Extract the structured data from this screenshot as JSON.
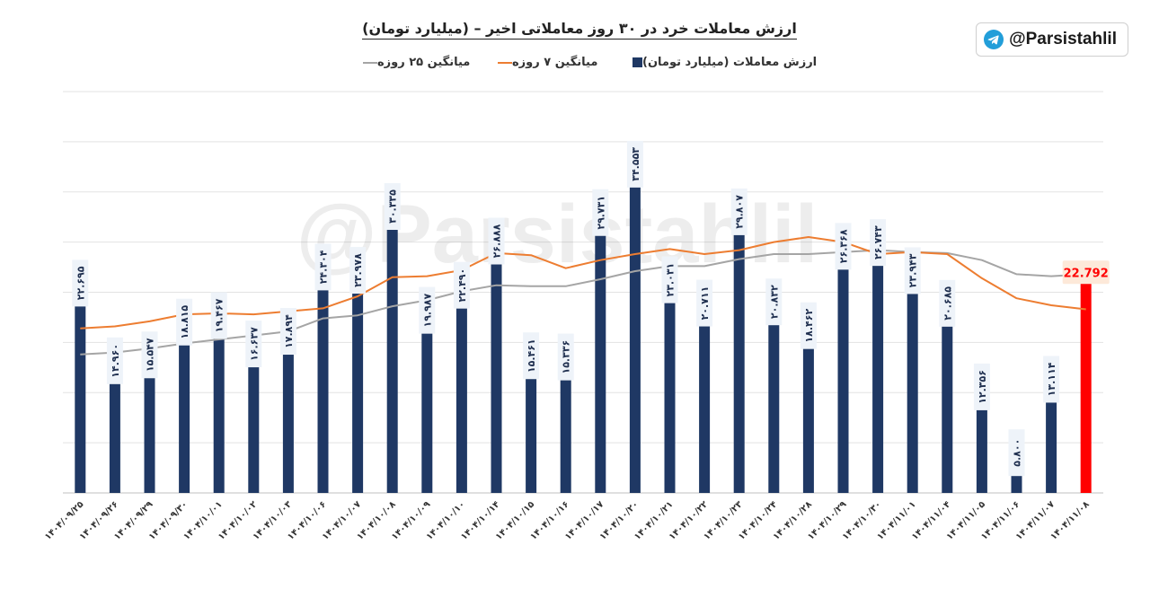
{
  "brand": {
    "handle": "@Parsistahlil",
    "icon": "telegram-icon"
  },
  "watermark": "@Parsistahlil",
  "chart_data": {
    "type": "bar",
    "title": "ارزش معاملات خرد در ۳۰ روز معاملاتی اخیر – (میلیارد تومان)",
    "xlabel": "",
    "ylabel": "",
    "ylim": [
      0,
      40
    ],
    "grid": true,
    "legend_position": "top",
    "categories": [
      "۱۴۰۴/۰۹/۲۵",
      "۱۴۰۴/۰۹/۲۶",
      "۱۴۰۴/۰۹/۲۹",
      "۱۴۰۴/۰۹/۳۰",
      "۱۴۰۴/۱۰/۰۱",
      "۱۴۰۴/۱۰/۰۲",
      "۱۴۰۴/۱۰/۰۳",
      "۱۴۰۴/۱۰/۰۶",
      "۱۴۰۴/۱۰/۰۷",
      "۱۴۰۴/۱۰/۰۸",
      "۱۴۰۴/۱۰/۰۹",
      "۱۴۰۴/۱۰/۱۰",
      "۱۴۰۴/۱۰/۱۴",
      "۱۴۰۴/۱۰/۱۵",
      "۱۴۰۴/۱۰/۱۶",
      "۱۴۰۴/۱۰/۱۷",
      "۱۴۰۴/۱۰/۲۰",
      "۱۴۰۴/۱۰/۲۱",
      "۱۴۰۴/۱۰/۲۲",
      "۱۴۰۴/۱۰/۲۳",
      "۱۴۰۴/۱۰/۲۴",
      "۱۴۰۴/۱۰/۲۸",
      "۱۴۰۴/۱۰/۲۹",
      "۱۴۰۴/۱۰/۳۰",
      "۱۴۰۴/۱۱/۰۱",
      "۱۴۰۴/۱۱/۰۴",
      "۱۴۰۴/۱۱/۰۵",
      "۱۴۰۴/۱۱/۰۶",
      "۱۴۰۴/۱۱/۰۷",
      "۱۴۰۴/۱۱/۰۸"
    ],
    "series": [
      {
        "name": "ارزش معاملات (میلیارد تومان)",
        "kind": "bar",
        "color": "#1f3864",
        "highlight_color": "#ff0000",
        "values": [
          22.695,
          14.96,
          15.547,
          18.815,
          19.467,
          16.637,
          17.894,
          24.304,
          23.978,
          30.335,
          19.987,
          22.49,
          26.888,
          15.461,
          15.336,
          29.731,
          34.553,
          23.031,
          20.711,
          29.807,
          20.832,
          18.462,
          26.368,
          26.743,
          23.943,
          20.685,
          12.356,
          5.8,
          13.114,
          22.792
        ],
        "labels": [
          "۲۲.۶۹۵",
          "۱۴.۹۶۰",
          "۱۵.۵۴۷",
          "۱۸.۸۱۵",
          "۱۹.۴۶۷",
          "۱۶.۶۳۷",
          "۱۷.۸۹۴",
          "۲۴.۳۰۴",
          "۲۳.۹۷۸",
          "۳۰.۳۳۵",
          "۱۹.۹۸۷",
          "۲۲.۴۹۰",
          "۲۶.۸۸۸",
          "۱۵.۴۶۱",
          "۱۵.۳۳۶",
          "۲۹.۷۳۱",
          "۳۴.۵۵۳",
          "۲۳.۰۳۱",
          "۲۰.۷۱۱",
          "۲۹.۸۰۷",
          "۲۰.۸۳۲",
          "۱۸.۴۶۲",
          "۲۶.۳۶۸",
          "۲۶.۷۴۳",
          "۲۳.۹۴۳",
          "۲۰.۶۸۵",
          "۱۲.۳۵۶",
          "۵.۸۰۰",
          "۱۳.۱۱۴",
          "22.792"
        ]
      },
      {
        "name": "میانگین ۷ روزه",
        "kind": "line",
        "color": "#ed7d31",
        "values": [
          16.4,
          16.6,
          17.1,
          17.8,
          17.9,
          17.8,
          18.1,
          18.4,
          19.6,
          21.5,
          21.6,
          22.2,
          23.9,
          23.7,
          22.4,
          23.2,
          23.8,
          24.3,
          23.8,
          24.2,
          25.0,
          25.5,
          25.0,
          23.8,
          24.0,
          23.8,
          21.4,
          19.4,
          18.7,
          18.3
        ]
      },
      {
        "name": "میانگین ۲۵ روزه",
        "kind": "line",
        "color": "#a5a5a5",
        "values": [
          13.8,
          14.0,
          14.4,
          14.9,
          15.3,
          15.7,
          16.1,
          17.4,
          17.7,
          18.6,
          19.2,
          20.1,
          20.7,
          20.6,
          20.6,
          21.3,
          22.1,
          22.6,
          22.6,
          23.3,
          23.8,
          23.8,
          24.0,
          24.2,
          24.0,
          23.9,
          23.2,
          21.8,
          21.6,
          21.8
        ]
      }
    ]
  }
}
